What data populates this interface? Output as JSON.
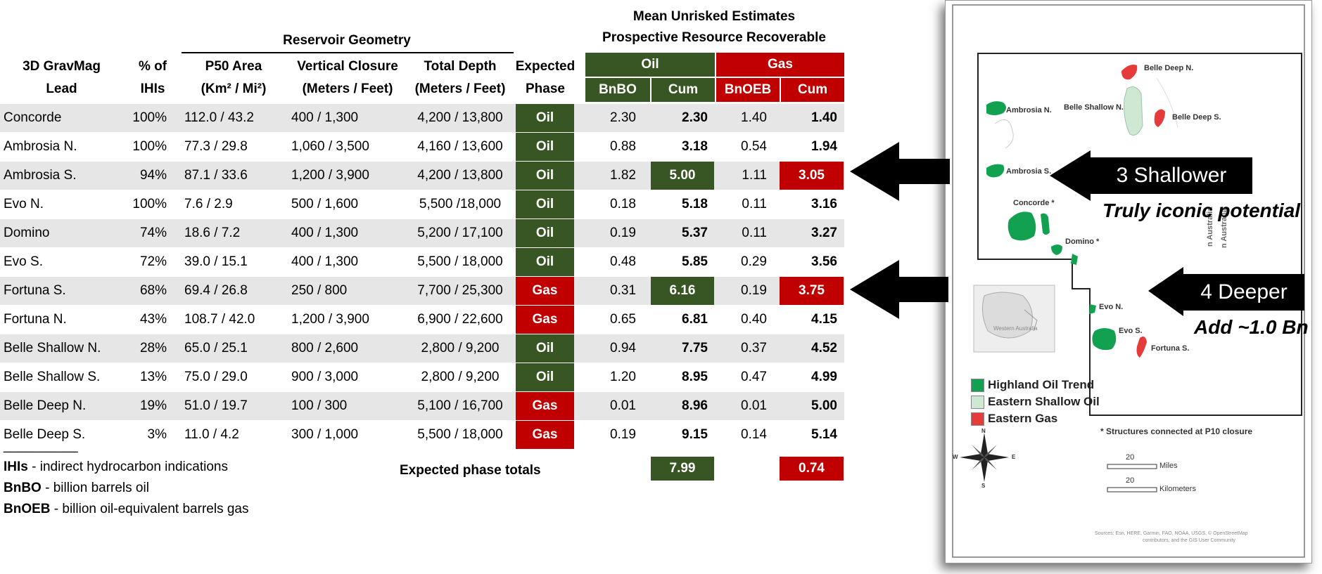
{
  "table": {
    "col_lead": "3D GravMag\nLead",
    "col_ihi": "% of\nIHIs",
    "group_reservoir": "Reservoir Geometry",
    "col_area_line1": "P50 Area",
    "col_area_line2": "(Km² / Mi²)",
    "col_closure_line1": "Vertical Closure",
    "col_closure_line2": "(Meters / Feet)",
    "col_depth_line1": "Total Depth",
    "col_depth_line2": "(Meters / Feet)",
    "col_phase": "Expected\nPhase",
    "group_estimates_line1": "Mean Unrisked Estimates",
    "group_estimates_line2": "Prospective Resource Recoverable",
    "group_oil": "Oil",
    "group_gas": "Gas",
    "sub_bnbo": "BnBO",
    "sub_cum_oil": "Cum",
    "sub_bnoeb": "BnOEB",
    "sub_cum_gas": "Cum",
    "rows": [
      {
        "lead": "Concorde",
        "ihi": "100%",
        "area": "112.0 / 43.2",
        "closure": "400 / 1,300",
        "depth": "4,200 / 13,800",
        "phase": "Oil",
        "bnbo": "2.30",
        "cum_oil": "2.30",
        "bnoeb": "1.40",
        "cum_gas": "1.40"
      },
      {
        "lead": "Ambrosia N.",
        "ihi": "100%",
        "area": "77.3 / 29.8",
        "closure": "1,060 / 3,500",
        "depth": "4,160 / 13,600",
        "phase": "Oil",
        "bnbo": "0.88",
        "cum_oil": "3.18",
        "bnoeb": "0.54",
        "cum_gas": "1.94"
      },
      {
        "lead": "Ambrosia S.",
        "ihi": "94%",
        "area": "87.1 / 33.6",
        "closure": "1,200 / 3,900",
        "depth": "4,200 / 13,800",
        "phase": "Oil",
        "bnbo": "1.82",
        "cum_oil": "5.00",
        "bnoeb": "1.11",
        "cum_gas": "3.05"
      },
      {
        "lead": "Evo N.",
        "ihi": "100%",
        "area": "7.6 / 2.9",
        "closure": "500 / 1,600",
        "depth": "5,500 /18,000",
        "phase": "Oil",
        "bnbo": "0.18",
        "cum_oil": "5.18",
        "bnoeb": "0.11",
        "cum_gas": "3.16"
      },
      {
        "lead": "Domino",
        "ihi": "74%",
        "area": "18.6 / 7.2",
        "closure": "400 / 1,300",
        "depth": "5,200 / 17,100",
        "phase": "Oil",
        "bnbo": "0.19",
        "cum_oil": "5.37",
        "bnoeb": "0.11",
        "cum_gas": "3.27"
      },
      {
        "lead": "Evo S.",
        "ihi": "72%",
        "area": "39.0 / 15.1",
        "closure": "400 / 1,300",
        "depth": "5,500 / 18,000",
        "phase": "Oil",
        "bnbo": "0.48",
        "cum_oil": "5.85",
        "bnoeb": "0.29",
        "cum_gas": "3.56"
      },
      {
        "lead": "Fortuna S.",
        "ihi": "68%",
        "area": "69.4 / 26.8",
        "closure": "250 / 800",
        "depth": "7,700 / 25,300",
        "phase": "Gas",
        "bnbo": "0.31",
        "cum_oil": "6.16",
        "bnoeb": "0.19",
        "cum_gas": "3.75"
      },
      {
        "lead": "Fortuna N.",
        "ihi": "43%",
        "area": "108.7 / 42.0",
        "closure": "1,200 / 3,900",
        "depth": "6,900 / 22,600",
        "phase": "Gas",
        "bnbo": "0.65",
        "cum_oil": "6.81",
        "bnoeb": "0.40",
        "cum_gas": "4.15"
      },
      {
        "lead": "Belle Shallow N.",
        "ihi": "28%",
        "area": "65.0 / 25.1",
        "closure": "800 / 2,600",
        "depth": "2,800 / 9,200",
        "phase": "Oil",
        "bnbo": "0.94",
        "cum_oil": "7.75",
        "bnoeb": "0.37",
        "cum_gas": "4.52"
      },
      {
        "lead": "Belle Shallow S.",
        "ihi": "13%",
        "area": "75.0 / 29.0",
        "closure": "900 / 3,000",
        "depth": "2,800 / 9,200",
        "phase": "Oil",
        "bnbo": "1.20",
        "cum_oil": "8.95",
        "bnoeb": "0.47",
        "cum_gas": "4.99"
      },
      {
        "lead": "Belle Deep N.",
        "ihi": "19%",
        "area": "51.0 / 19.7",
        "closure": "100 / 300",
        "depth": "5,100 / 16,700",
        "phase": "Gas",
        "bnbo": "0.01",
        "cum_oil": "8.96",
        "bnoeb": "0.01",
        "cum_gas": "5.00"
      },
      {
        "lead": "Belle Deep S.",
        "ihi": "3%",
        "area": "11.0 / 4.2",
        "closure": "300 / 1,000",
        "depth": "5,500 / 18,000",
        "phase": "Gas",
        "bnbo": "0.19",
        "cum_oil": "9.15",
        "bnoeb": "0.14",
        "cum_gas": "5.14"
      }
    ],
    "totals_label": "Expected phase totals",
    "total_oil": "7.99",
    "total_gas": "0.74"
  },
  "legend": {
    "rule": "__________",
    "ihis_term": "IHIs",
    "ihis_def": " - indirect hydrocarbon indications",
    "bnbo_term": "BnBO",
    "bnbo_def": " - billion barrels oil",
    "bnoeb_term": "BnOEB",
    "bnoeb_def": " - billion oil-equivalent barrels gas"
  },
  "callouts": {
    "shallower": "3 Shallower",
    "shallower_note": "Truly iconic potential",
    "deeper": "4 Deeper",
    "deeper_note": "Add ~1.0 Bn"
  },
  "map": {
    "labels": {
      "belle_deep_n": "Belle Deep N.",
      "belle_deep_s": "Belle Deep S.",
      "belle_shallow_n": "Belle Shallow N.",
      "ambrosia_n": "Ambrosia N.",
      "ambrosia_s": "Ambrosia S.",
      "concorde": "Concorde *",
      "domino": "Domino *",
      "evo_n": "Evo N.",
      "evo_s": "Evo S.",
      "fortuna_s": "Fortuna S.",
      "state_1": "n Australia",
      "state_2": "n Australia",
      "inset": "Western Australia"
    },
    "legend": [
      {
        "label": "Highland Oil Trend",
        "color": "#12a150"
      },
      {
        "label": "Eastern Shallow Oil",
        "color": "#cfe8d3"
      },
      {
        "label": "Eastern Gas",
        "color": "#e53b3b"
      }
    ],
    "footnote": "* Structures connected at P10 closure",
    "compass": {
      "n": "N",
      "s": "S",
      "e": "E",
      "w": "W"
    },
    "scale_miles_value": "20",
    "scale_miles_unit": "Miles",
    "scale_km_value": "20",
    "scale_km_unit": "Kilometers",
    "credits_line1": "Sources: Esri, HERE, Garmin, FAO, NOAA, USGS, © OpenStreetMap",
    "credits_line2": "contributors, and the GIS User Community"
  },
  "colors": {
    "oil": "#375623",
    "gas": "#c00000",
    "shade": "#e6e6e6"
  }
}
